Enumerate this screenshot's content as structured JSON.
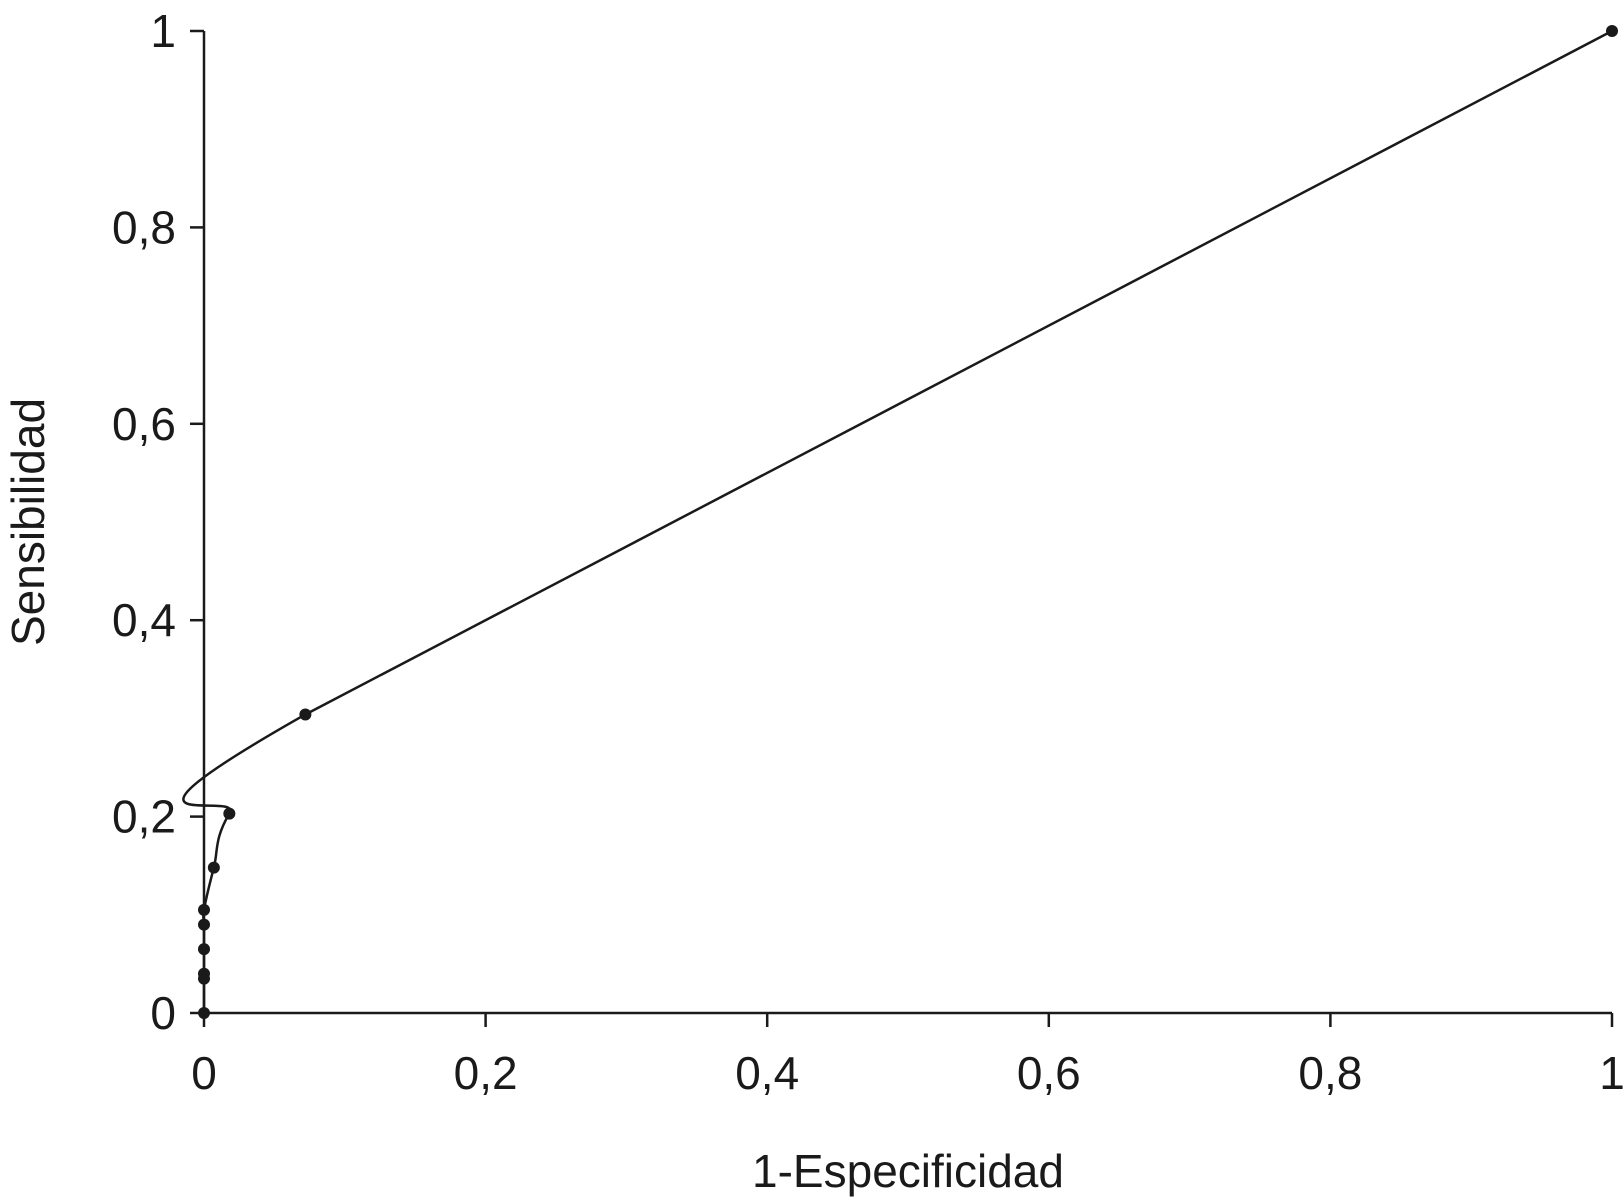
{
  "chart_data": {
    "type": "line",
    "title": "",
    "xlabel": "1-Especificidad",
    "ylabel": "Sensibilidad",
    "xlim": [
      0,
      1
    ],
    "ylim": [
      0,
      1
    ],
    "x_ticks": [
      0,
      0.2,
      0.4,
      0.6,
      0.8,
      1
    ],
    "x_tick_labels": [
      "0",
      "0,2",
      "0,4",
      "0,6",
      "0,8",
      "1"
    ],
    "y_ticks": [
      0,
      0.2,
      0.4,
      0.6,
      0.8,
      1
    ],
    "y_tick_labels": [
      "0",
      "0,2",
      "0,4",
      "0,6",
      "0,8",
      "1"
    ],
    "grid": false,
    "legend": "none",
    "line_color": "#1a1a1a",
    "curve_style": "smooth",
    "series": [
      {
        "points": [
          {
            "x": 0.0,
            "y": 0.0
          },
          {
            "x": 0.0,
            "y": 0.035
          },
          {
            "x": 0.0,
            "y": 0.04
          },
          {
            "x": 0.0,
            "y": 0.065
          },
          {
            "x": 0.0,
            "y": 0.09
          },
          {
            "x": 0.0,
            "y": 0.105
          },
          {
            "x": 0.007,
            "y": 0.148
          },
          {
            "x": 0.018,
            "y": 0.203
          },
          {
            "x": 0.072,
            "y": 0.304
          },
          {
            "x": 1.0,
            "y": 1.0
          }
        ]
      }
    ]
  }
}
